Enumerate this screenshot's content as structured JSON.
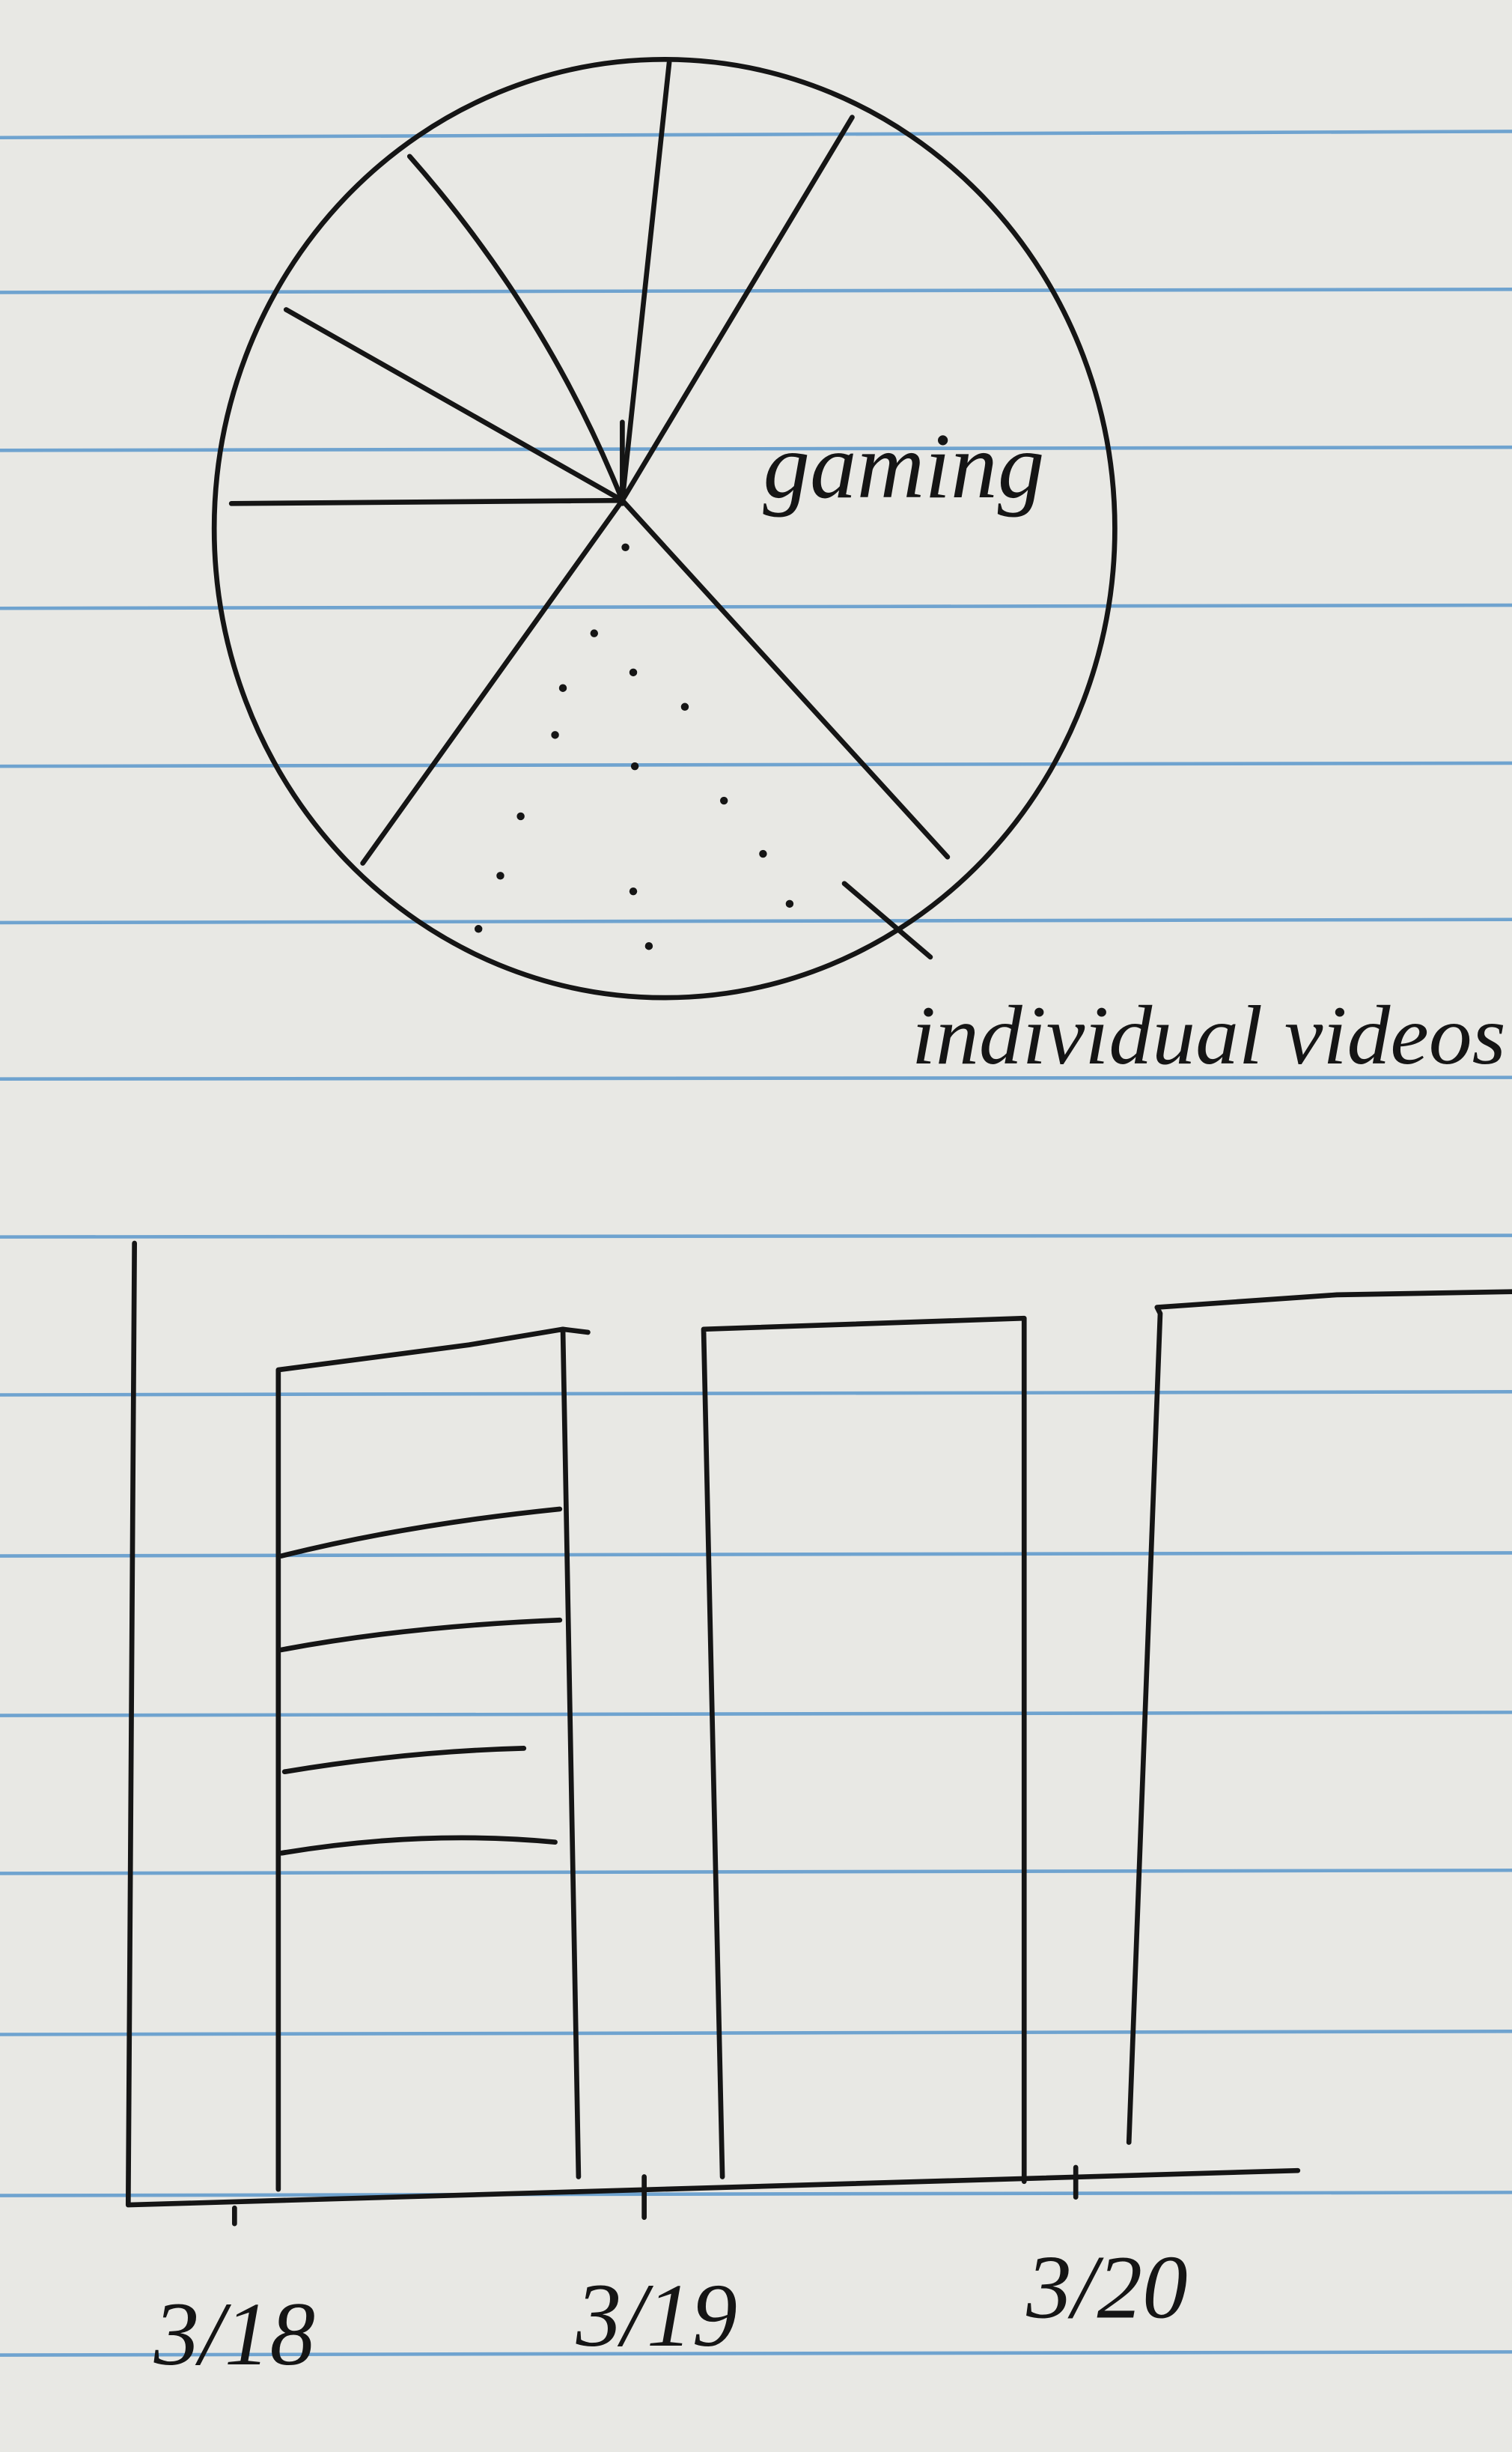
{
  "pie": {
    "labels": [
      "gaming",
      "individual videos"
    ]
  },
  "bar": {
    "x_labels": [
      "3/18",
      "3/19",
      "3/20"
    ]
  }
}
